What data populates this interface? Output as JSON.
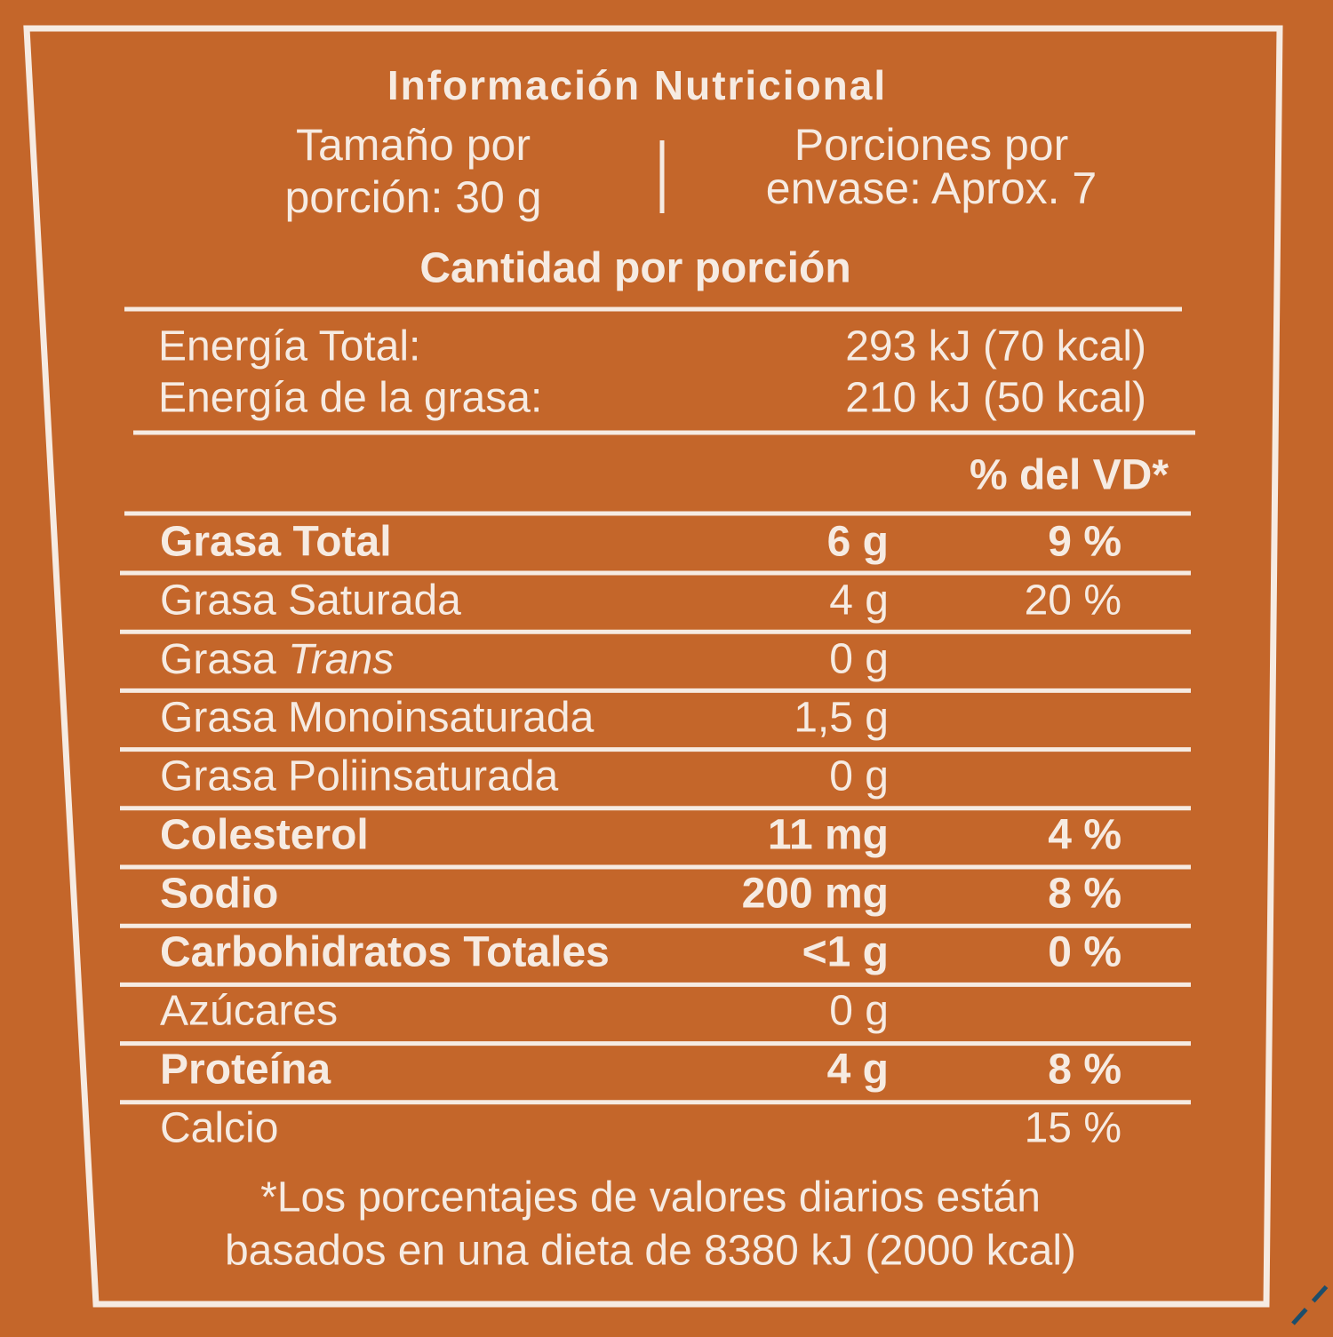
{
  "header": {
    "title": "Información Nutricional",
    "serving_size": [
      "Tamaño por",
      "porción: 30 g"
    ],
    "servings_per_container": [
      "Porciones por",
      "envase: Aprox. 7"
    ],
    "amount_heading": "Cantidad por porción"
  },
  "energy": [
    {
      "label": "Energía Total:",
      "value": "293 kJ (70 kcal)"
    },
    {
      "label": "Energía de la grasa:",
      "value": "210 kJ (50 kcal)"
    }
  ],
  "dv_heading": "% del VD*",
  "nutrients": [
    {
      "label": "Grasa Total",
      "amount": "6 g",
      "dv": "9 %",
      "bold": true
    },
    {
      "label": "Grasa Saturada",
      "amount": "4 g",
      "dv": "20 %",
      "bold": false
    },
    {
      "label": "Grasa",
      "label_italic": "Trans",
      "amount": "0 g",
      "bold": false
    },
    {
      "label": "Grasa Monoinsaturada",
      "amount": "1,5 g",
      "bold": false
    },
    {
      "label": "Grasa Poliinsaturada",
      "amount": "0 g",
      "bold": false
    },
    {
      "label": "Colesterol",
      "amount": "11 mg",
      "dv": "4 %",
      "bold": true
    },
    {
      "label": "Sodio",
      "amount": "200 mg",
      "dv": "8 %",
      "bold": true
    },
    {
      "label": "Carbohidratos Totales",
      "amount": "<1 g",
      "dv": "0 %",
      "bold": true
    },
    {
      "label": "Azúcares",
      "amount": "0 g",
      "bold": false
    },
    {
      "label": "Proteína",
      "amount": "4 g",
      "dv": "8 %",
      "bold": true
    },
    {
      "label": "Calcio",
      "dv": "15 %",
      "bold": false
    }
  ],
  "footnote": [
    "*Los porcentajes de valores diarios están",
    "basados en una dieta de 8380 kJ (2000 kcal)"
  ]
}
